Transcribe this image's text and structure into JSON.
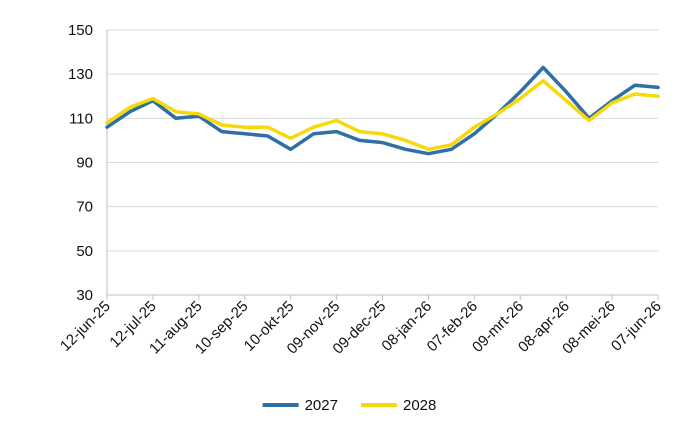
{
  "chart_data": {
    "type": "line",
    "title": "",
    "xlabel": "",
    "ylabel": "",
    "ylim": [
      30,
      150
    ],
    "yticks": [
      30,
      50,
      70,
      90,
      110,
      130,
      150
    ],
    "xticks": [
      "12-jun-25",
      "12-jul-25",
      "11-aug-25",
      "10-sep-25",
      "10-okt-25",
      "09-nov-25",
      "09-dec-25",
      "08-jan-26",
      "07-feb-26",
      "09-mrt-26",
      "08-apr-26",
      "08-mei-26",
      "07-jun-26"
    ],
    "grid": true,
    "legend_position": "bottom-center",
    "x": [
      "12-jun-25",
      "27-jun-25",
      "12-jul-25",
      "27-jul-25",
      "11-aug-25",
      "26-aug-25",
      "10-sep-25",
      "25-sep-25",
      "10-okt-25",
      "25-okt-25",
      "09-nov-25",
      "24-nov-25",
      "09-dec-25",
      "24-dec-25",
      "08-jan-26",
      "23-jan-26",
      "07-feb-26",
      "22-feb-26",
      "09-mrt-26",
      "24-mrt-26",
      "08-apr-26",
      "23-apr-26",
      "08-mei-26",
      "23-mei-26",
      "07-jun-26"
    ],
    "series": [
      {
        "name": "2027",
        "color": "#2f6fa6",
        "values": [
          106,
          113,
          118,
          110,
          111,
          104,
          103,
          102,
          96,
          103,
          104,
          100,
          99,
          96,
          94,
          96,
          103,
          112,
          122,
          133,
          122,
          110,
          118,
          125,
          124
        ]
      },
      {
        "name": "2028",
        "color": "#f5d90a",
        "values": [
          108,
          115,
          119,
          113,
          112,
          107,
          106,
          106,
          101,
          106,
          109,
          104,
          103,
          100,
          96,
          98,
          106,
          112,
          119,
          127,
          118,
          109,
          117,
          121,
          120
        ]
      }
    ]
  }
}
